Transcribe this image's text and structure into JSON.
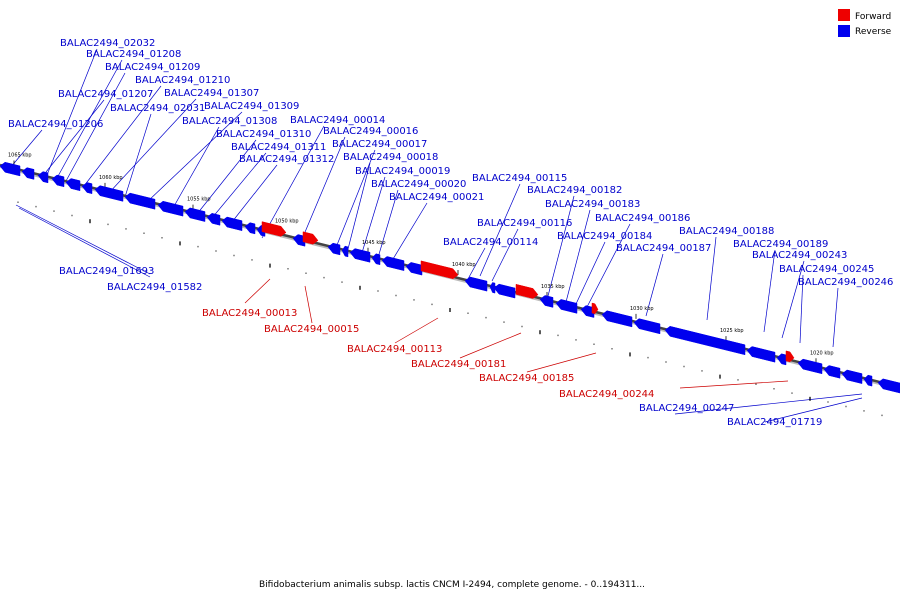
{
  "caption": "Bifidobacterium animalis subsp. lactis CNCM I-2494, complete genome. - 0..194311...",
  "legend": [
    {
      "label": "Forward",
      "color": "#ee0000"
    },
    {
      "label": "Reverse",
      "color": "#0000ee"
    }
  ],
  "colors": {
    "forward": "#ee0000",
    "reverse": "#0000ee",
    "backbone": "#444444",
    "label_forward": "#cc0000",
    "label_reverse": "#0000cc"
  },
  "scale_ticks": [
    "1065 kbp",
    "1060 kbp",
    "1055 kbp",
    "1050 kbp",
    "1045 kbp",
    "1040 kbp",
    "1035 kbp",
    "1030 kbp",
    "1025 kbp",
    "1020 kbp"
  ],
  "reverse_genes": [
    "BALAC2494_02032",
    "BALAC2494_01208",
    "BALAC2494_01209",
    "BALAC2494_01207",
    "BALAC2494_01210",
    "BALAC2494_01307",
    "BALAC2494_02031",
    "BALAC2494_01309",
    "BALAC2494_01206",
    "BALAC2494_01308",
    "BALAC2494_00014",
    "BALAC2494_01310",
    "BALAC2494_00016",
    "BALAC2494_01311",
    "BALAC2494_00017",
    "BALAC2494_01312",
    "BALAC2494_00018",
    "BALAC2494_00019",
    "BALAC2494_00115",
    "BALAC2494_00020",
    "BALAC2494_00182",
    "BALAC2494_00021",
    "BALAC2494_00183",
    "BALAC2494_00186",
    "BALAC2494_00116",
    "BALAC2494_00184",
    "BALAC2494_00188",
    "BALAC2494_00114",
    "BALAC2494_00189",
    "BALAC2494_00187",
    "BALAC2494_00243",
    "BALAC2494_00245",
    "BALAC2494_00246",
    "BALAC2494_01693",
    "BALAC2494_01582",
    "BALAC2494_00247",
    "BALAC2494_01719"
  ],
  "forward_genes": [
    "BALAC2494_00013",
    "BALAC2494_00015",
    "BALAC2494_00113",
    "BALAC2494_00181",
    "BALAC2494_00185",
    "BALAC2494_00244"
  ]
}
